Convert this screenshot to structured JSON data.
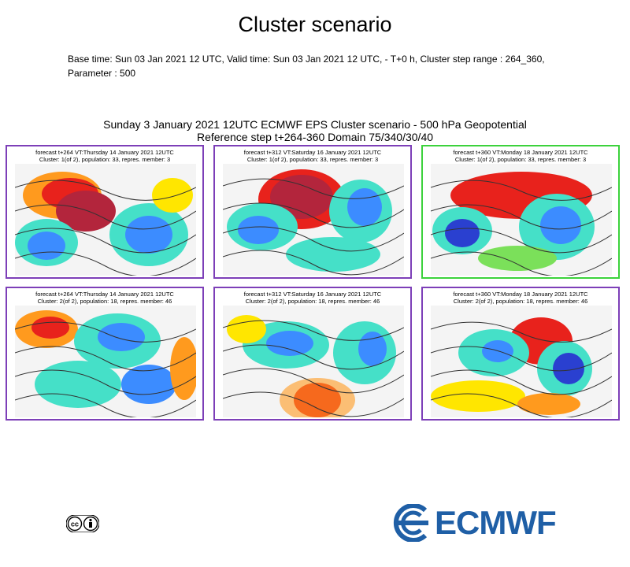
{
  "header": {
    "title": "Cluster scenario",
    "meta_line1": "Base time: Sun 03 Jan 2021 12 UTC, Valid time: Sun 03 Jan 2021 12 UTC, - T+0 h, Cluster step range : 264_360,",
    "meta_line2": "Parameter : 500"
  },
  "figure": {
    "title_line1": "Sunday 3 January 2021 12UTC ECMWF EPS Cluster scenario - 500 hPa Geopotential",
    "title_line2": "Reference step t+264-360 Domain 75/340/30/40"
  },
  "panels": [
    {
      "line1": "forecast t+264 VT:Thursday 14 January 2021 12UTC",
      "line2": "Cluster: 1(of 2), population: 33, repres. member: 3"
    },
    {
      "line1": "forecast t+312 VT:Saturday 16 January 2021 12UTC",
      "line2": "Cluster: 1(of 2), population: 33, repres. member: 3"
    },
    {
      "line1": "forecast t+360 VT:Monday 18 January 2021 12UTC",
      "line2": "Cluster: 1(of 2), population: 33, repres. member: 3"
    },
    {
      "line1": "forecast t+264 VT:Thursday 14 January 2021 12UTC",
      "line2": "Cluster: 2(of 2), population: 18, repres. member: 46"
    },
    {
      "line1": "forecast t+312 VT:Saturday 16 January 2021 12UTC",
      "line2": "Cluster: 2(of 2), population: 18, repres. member: 46"
    },
    {
      "line1": "forecast t+360 VT:Monday 18 January 2021 12UTC",
      "line2": "Cluster: 2(of 2), population: 18, repres. member: 46"
    }
  ],
  "colors": {
    "border_cluster": "#7d3fb8",
    "border_highlight": "#3cd23c",
    "brand": "#1f5fa6"
  },
  "footer": {
    "license_icon": "creative-commons-by-icon",
    "logo_text": "ECMWF"
  }
}
